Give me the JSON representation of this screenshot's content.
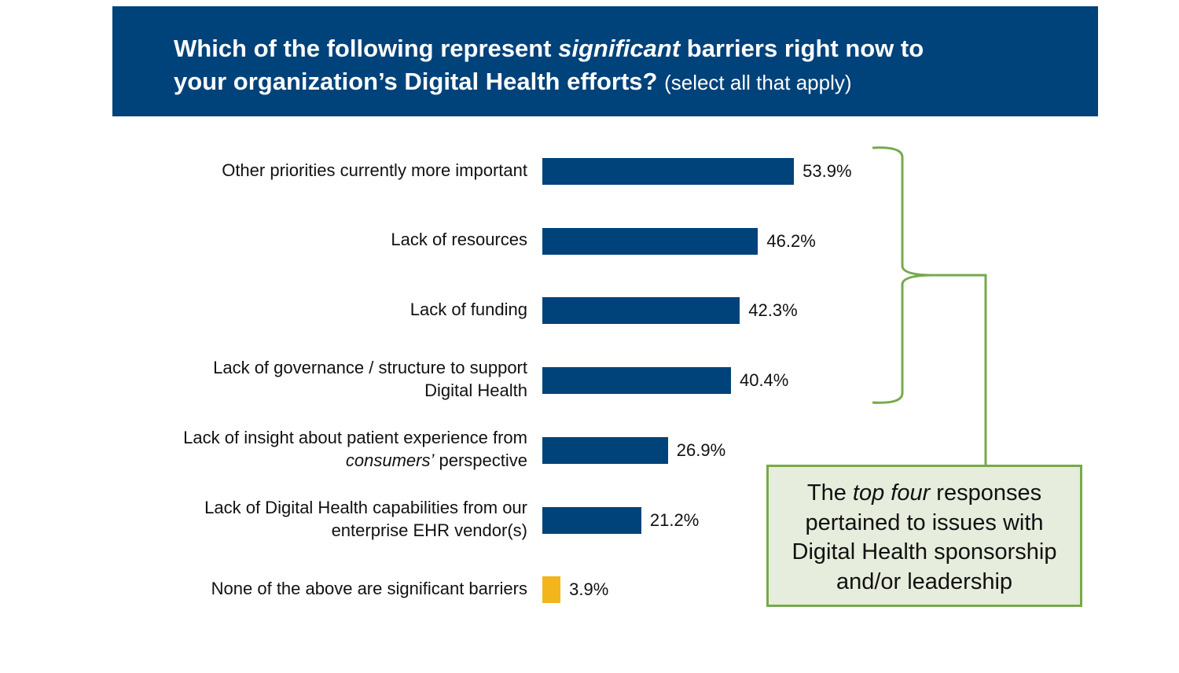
{
  "header": {
    "line1_a": "Which of the following represent ",
    "line1_italic": "significant",
    "line1_b": " barriers right now to",
    "line2": "your organization’s Digital Health efforts? ",
    "line2_sub": "(select all that apply)"
  },
  "chart_data": {
    "type": "bar",
    "orientation": "horizontal",
    "title": "Which of the following represent significant barriers right now to your organization’s Digital Health efforts? (select all that apply)",
    "categories": [
      [
        [
          {
            "t": "Other priorities currently more important"
          }
        ]
      ],
      [
        [
          {
            "t": "Lack of resources"
          }
        ]
      ],
      [
        [
          {
            "t": "Lack of funding"
          }
        ]
      ],
      [
        [
          {
            "t": "Lack of governance / structure to support"
          }
        ],
        [
          {
            "t": "Digital Health"
          }
        ]
      ],
      [
        [
          {
            "t": "Lack of insight about patient experience from"
          }
        ],
        [
          {
            "t": "consumers’",
            "i": true
          },
          {
            "t": " perspective"
          }
        ]
      ],
      [
        [
          {
            "t": "Lack of Digital Health capabilities from our"
          }
        ],
        [
          {
            "t": "enterprise EHR vendor(s)"
          }
        ]
      ],
      [
        [
          {
            "t": "None of the above are significant barriers"
          }
        ]
      ]
    ],
    "values": [
      53.9,
      46.2,
      42.3,
      40.4,
      26.9,
      21.2,
      3.9
    ],
    "value_labels": [
      "53.9%",
      "46.2%",
      "42.3%",
      "40.4%",
      "26.9%",
      "21.2%",
      "3.9%"
    ],
    "colors": [
      "#00427a",
      "#00427a",
      "#00427a",
      "#00427a",
      "#00427a",
      "#00427a",
      "#f2b51c"
    ],
    "xlim": [
      0,
      100
    ],
    "grid": false
  },
  "callout": {
    "a": "The ",
    "italic": "top four",
    "b": " responses",
    "line2": "pertained to issues with",
    "line3": "Digital Health sponsorship",
    "line4": "and/or leadership"
  },
  "colors": {
    "header": "#00427a",
    "bracket": "#76a94c",
    "callout_fill": "#e6eddc"
  }
}
